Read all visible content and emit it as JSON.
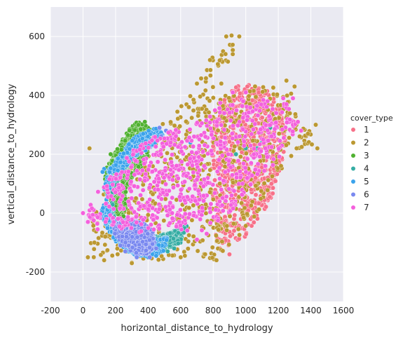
{
  "chart_data": {
    "type": "scatter",
    "title": "",
    "xlabel": "horizontal_distance_to_hydrology",
    "ylabel": "vertical_distance_to_hydrology",
    "xlim": [
      -200,
      1600
    ],
    "ylim": [
      -300,
      700
    ],
    "x_ticks": [
      -200,
      0,
      200,
      400,
      600,
      800,
      1000,
      1200,
      1400,
      1600
    ],
    "y_ticks": [
      -200,
      0,
      200,
      400,
      600
    ],
    "grid": true,
    "background": "#EAEAF2",
    "legend": {
      "title": "cover_type",
      "placement": "right"
    },
    "series": [
      {
        "name": "1",
        "color": "#F77189",
        "polygon": [
          [
            820,
            -100
          ],
          [
            900,
            -110
          ],
          [
            1000,
            -80
          ],
          [
            1080,
            -20
          ],
          [
            1150,
            40
          ],
          [
            1200,
            120
          ],
          [
            1250,
            250
          ],
          [
            1210,
            360
          ],
          [
            1130,
            420
          ],
          [
            1020,
            440
          ],
          [
            940,
            430
          ],
          [
            860,
            380
          ],
          [
            800,
            300
          ],
          [
            790,
            150
          ],
          [
            800,
            20
          ]
        ],
        "points": [
          [
            1010,
            430
          ],
          [
            1080,
            410
          ],
          [
            840,
            -120
          ],
          [
            900,
            -140
          ],
          [
            1130,
            300
          ],
          [
            1190,
            200
          ]
        ]
      },
      {
        "name": "2",
        "color": "#BB9832",
        "polygon": [
          [
            40,
            -150
          ],
          [
            160,
            -150
          ],
          [
            300,
            -180
          ],
          [
            420,
            -170
          ],
          [
            560,
            -150
          ],
          [
            700,
            -140
          ],
          [
            800,
            -160
          ],
          [
            900,
            -110
          ],
          [
            1020,
            -40
          ],
          [
            1120,
            40
          ],
          [
            1180,
            110
          ],
          [
            1240,
            170
          ],
          [
            1330,
            200
          ],
          [
            1410,
            230
          ],
          [
            1400,
            290
          ],
          [
            1330,
            320
          ],
          [
            1260,
            450
          ],
          [
            1200,
            420
          ],
          [
            1150,
            440
          ],
          [
            1100,
            440
          ],
          [
            1050,
            430
          ],
          [
            960,
            420
          ],
          [
            900,
            420
          ],
          [
            800,
            420
          ],
          [
            900,
            520
          ],
          [
            960,
            600
          ],
          [
            900,
            610
          ],
          [
            800,
            540
          ],
          [
            700,
            430
          ],
          [
            600,
            360
          ],
          [
            500,
            320
          ],
          [
            400,
            270
          ],
          [
            300,
            230
          ],
          [
            200,
            150
          ],
          [
            110,
            60
          ],
          [
            60,
            -20
          ],
          [
            30,
            -100
          ]
        ],
        "points": [
          [
            40,
            220
          ],
          [
            30,
            -150
          ],
          [
            70,
            -100
          ],
          [
            130,
            -160
          ],
          [
            300,
            -170
          ],
          [
            600,
            -150
          ],
          [
            820,
            -160
          ],
          [
            1430,
            300
          ],
          [
            1440,
            220
          ],
          [
            1300,
            430
          ],
          [
            1250,
            450
          ],
          [
            960,
            600
          ],
          [
            880,
            600
          ],
          [
            780,
            520
          ],
          [
            700,
            440
          ],
          [
            650,
            360
          ],
          [
            850,
            440
          ],
          [
            920,
            540
          ]
        ]
      },
      {
        "name": "3",
        "color": "#50B131",
        "polygon": [
          [
            140,
            150
          ],
          [
            200,
            210
          ],
          [
            260,
            270
          ],
          [
            330,
            310
          ],
          [
            380,
            300
          ],
          [
            420,
            280
          ],
          [
            400,
            200
          ],
          [
            350,
            150
          ],
          [
            300,
            120
          ],
          [
            250,
            -40
          ],
          [
            330,
            -90
          ],
          [
            440,
            -110
          ],
          [
            480,
            -100
          ],
          [
            420,
            -60
          ],
          [
            300,
            -30
          ],
          [
            200,
            0
          ],
          [
            130,
            80
          ]
        ],
        "points": [
          [
            380,
            310
          ],
          [
            340,
            300
          ],
          [
            170,
            200
          ],
          [
            480,
            -110
          ],
          [
            420,
            -130
          ]
        ]
      },
      {
        "name": "4",
        "color": "#36ADA4",
        "polygon": [
          [
            150,
            -20
          ],
          [
            250,
            -90
          ],
          [
            380,
            -120
          ],
          [
            520,
            -120
          ],
          [
            600,
            -100
          ],
          [
            640,
            -40
          ],
          [
            560,
            -60
          ],
          [
            440,
            -80
          ],
          [
            320,
            -60
          ],
          [
            200,
            -20
          ],
          [
            170,
            80
          ],
          [
            230,
            180
          ],
          [
            300,
            230
          ],
          [
            360,
            260
          ],
          [
            340,
            210
          ],
          [
            270,
            160
          ],
          [
            200,
            90
          ]
        ],
        "points": [
          [
            520,
            -130
          ],
          [
            560,
            -120
          ],
          [
            500,
            -110
          ],
          [
            1070,
            220
          ],
          [
            1100,
            240
          ],
          [
            1150,
            290
          ],
          [
            940,
            200
          ],
          [
            1000,
            220
          ]
        ]
      },
      {
        "name": "5",
        "color": "#3BA3EC",
        "polygon": [
          [
            100,
            -10
          ],
          [
            200,
            -100
          ],
          [
            300,
            -140
          ],
          [
            400,
            -150
          ],
          [
            500,
            -130
          ],
          [
            520,
            -80
          ],
          [
            400,
            -90
          ],
          [
            280,
            -70
          ],
          [
            180,
            -10
          ],
          [
            130,
            80
          ],
          [
            160,
            150
          ],
          [
            230,
            200
          ],
          [
            300,
            250
          ],
          [
            380,
            280
          ],
          [
            460,
            290
          ],
          [
            500,
            270
          ],
          [
            430,
            230
          ],
          [
            300,
            180
          ],
          [
            200,
            120
          ]
        ],
        "points": [
          [
            130,
            150
          ],
          [
            120,
            140
          ],
          [
            400,
            -150
          ],
          [
            450,
            -145
          ],
          [
            700,
            260
          ],
          [
            660,
            240
          ]
        ]
      },
      {
        "name": "6",
        "color": "#7A89F0",
        "polygon": [
          [
            180,
            -60
          ],
          [
            220,
            -90
          ],
          [
            270,
            -120
          ],
          [
            330,
            -140
          ],
          [
            400,
            -140
          ],
          [
            440,
            -110
          ],
          [
            430,
            -60
          ],
          [
            360,
            -30
          ],
          [
            280,
            -20
          ],
          [
            220,
            -30
          ]
        ],
        "points": [
          [
            230,
            -110
          ],
          [
            260,
            -130
          ],
          [
            330,
            -150
          ],
          [
            410,
            -150
          ],
          [
            450,
            -120
          ],
          [
            480,
            260
          ],
          [
            510,
            280
          ],
          [
            470,
            290
          ]
        ]
      },
      {
        "name": "7",
        "color": "#F461DD",
        "polygon": [
          [
            20,
            0
          ],
          [
            60,
            -30
          ],
          [
            100,
            -40
          ],
          [
            180,
            -50
          ],
          [
            300,
            -60
          ],
          [
            400,
            -80
          ],
          [
            500,
            -60
          ],
          [
            600,
            -60
          ],
          [
            700,
            -70
          ],
          [
            780,
            -50
          ],
          [
            840,
            -20
          ],
          [
            900,
            0
          ],
          [
            950,
            30
          ],
          [
            1000,
            70
          ],
          [
            1050,
            110
          ],
          [
            1120,
            140
          ],
          [
            1180,
            170
          ],
          [
            1240,
            210
          ],
          [
            1290,
            260
          ],
          [
            1320,
            300
          ],
          [
            1300,
            340
          ],
          [
            1260,
            360
          ],
          [
            1220,
            380
          ],
          [
            1160,
            380
          ],
          [
            1080,
            390
          ],
          [
            980,
            400
          ],
          [
            900,
            400
          ],
          [
            840,
            380
          ],
          [
            800,
            340
          ],
          [
            740,
            320
          ],
          [
            660,
            300
          ],
          [
            580,
            290
          ],
          [
            520,
            280
          ],
          [
            440,
            260
          ],
          [
            380,
            240
          ],
          [
            300,
            210
          ],
          [
            220,
            160
          ],
          [
            160,
            120
          ],
          [
            100,
            80
          ],
          [
            50,
            40
          ]
        ],
        "points": [
          [
            0,
            0
          ],
          [
            30,
            -30
          ],
          [
            90,
            -55
          ],
          [
            1290,
            390
          ],
          [
            1250,
            370
          ],
          [
            1230,
            390
          ],
          [
            1320,
            310
          ],
          [
            1340,
            280
          ],
          [
            920,
            410
          ],
          [
            1000,
            410
          ],
          [
            700,
            -90
          ],
          [
            760,
            -70
          ],
          [
            980,
            100
          ],
          [
            1120,
            160
          ]
        ]
      }
    ]
  }
}
